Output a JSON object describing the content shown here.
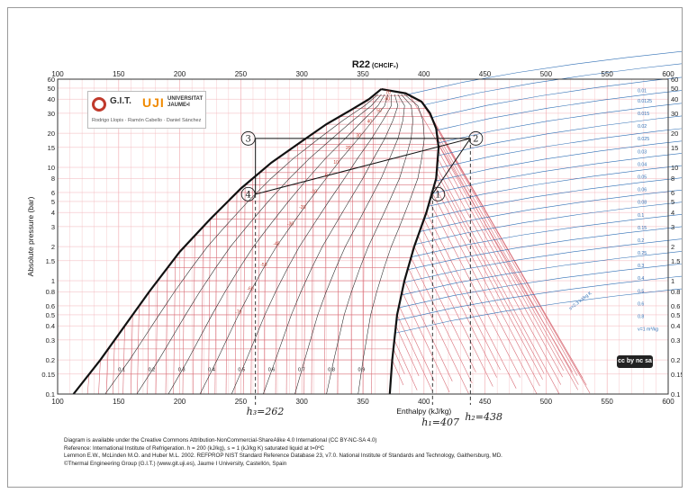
{
  "chart_data": {
    "type": "line",
    "title": "R22",
    "subtitle": "(CHClF₂)",
    "xlabel": "Enthalpy (kJ/kg)",
    "ylabel": "Absolute pressure (bar)",
    "y_scale": "log",
    "xlim": [
      100,
      600
    ],
    "ylim": [
      0.1,
      60
    ],
    "x_ticks": [
      "100",
      "150",
      "200",
      "250",
      "300",
      "350",
      "400",
      "450",
      "500",
      "550",
      "600"
    ],
    "y_ticks_left": [
      "0.1",
      "0.15",
      "0.2",
      "0.3",
      "0.4",
      "0.5",
      "0.6",
      "0.8",
      "1",
      "1.5",
      "2",
      "3",
      "4",
      "5",
      "6",
      "8",
      "10",
      "15",
      "20",
      "30",
      "40",
      "50",
      "60"
    ],
    "y_ticks_right": [
      "0.1",
      "0.15",
      "0.2",
      "0.3",
      "0.4",
      "0.5",
      "0.6",
      "0.8",
      "1",
      "1.5",
      "2",
      "3",
      "4",
      "5",
      "6",
      "8",
      "10",
      "15",
      "20",
      "30",
      "40",
      "50",
      "60"
    ],
    "series": [
      {
        "name": "",
        "x": [
          113,
          135,
          155,
          175,
          200,
          225,
          250,
          275,
          300,
          320,
          340,
          355,
          365
        ],
        "y": [
          0.1,
          0.2,
          0.4,
          0.8,
          1.8,
          3.5,
          6.5,
          11,
          17,
          24,
          32,
          40,
          49
        ]
      },
      {
        "name": "",
        "x": [
          365,
          385,
          398,
          405,
          410,
          412,
          410,
          402,
          392,
          384,
          378,
          374,
          372
        ],
        "y": [
          49,
          45,
          38,
          30,
          22,
          15,
          8,
          4,
          2,
          1,
          0.5,
          0.2,
          0.1
        ]
      },
      {
        "name": "",
        "x": [
          262,
          262,
          405,
          438,
          262
        ],
        "y": [
          5.8,
          18,
          18,
          18,
          5.8
        ]
      },
      {
        "name": "",
        "x": [
          407,
          438
        ],
        "y": [
          5.8,
          18
        ]
      }
    ],
    "quality_labels": [
      "0.1",
      "0.2",
      "0.3",
      "0.4",
      "0.5",
      "0.6",
      "0.7",
      "0.8",
      "0.9"
    ],
    "temperature_labels": [
      "70",
      "60",
      "50",
      "40",
      "30",
      "20",
      "10",
      "0",
      "-10",
      "-20",
      "-30",
      "-40",
      "-50",
      "-60",
      "-70"
    ],
    "volume_labels": [
      "0.01",
      "0.0125",
      "0.015",
      "0.02",
      "0.025",
      "0.03",
      "0.04",
      "0.05",
      "0.06",
      "0.08",
      "0.1",
      "0.15",
      "0.2",
      "0.25",
      "0.3",
      "0.4",
      "0.5",
      "0.6",
      "0.8",
      "v=1 m³/kg"
    ],
    "entropy_axis_label": "s=2.3 kJ/kg K",
    "point_labels": [
      "3",
      "4",
      "1",
      "2"
    ],
    "annotations": [
      "h₃=262",
      "h₁=407",
      "h₂=438"
    ],
    "grid": true
  },
  "logo": {
    "git": "G.I.T.",
    "uji": "UJI",
    "university": "UNIVERSITAT\nJAUME•I",
    "authors": "Rodrigo Llopis · Ramón Cabello · Daniel Sánchez"
  },
  "license_badge": "cc by nc sa",
  "notes": [
    "Diagram is available under the Creative Commons Attribution-NonCommercial-ShareAlike 4.0 International (CC BY-NC-SA 4.0)",
    "Reference: International Institute of Refrigeration. h = 200 (kJ/kg), s = 1 (kJ/kg K) saturated liquid at t=0ºC",
    "Lemmon E.W., McLinden M.O. and Huber M.L. 2002. REFPROP NIST Standard Reference Database 23, v7.0. National Institute of Standards and Technology, Gaithersburg, MD.",
    "©Thermal Engineering Group (G.I.T.) (www.git.uji.es), Jaume I University, Castellón, Spain"
  ],
  "colors": {
    "saturation": "#111111",
    "isotherm": "#d9707a",
    "isochore": "#2f6fb5",
    "quality": "#222222",
    "cycle": "#111111",
    "grid": "#f2b3b8"
  }
}
